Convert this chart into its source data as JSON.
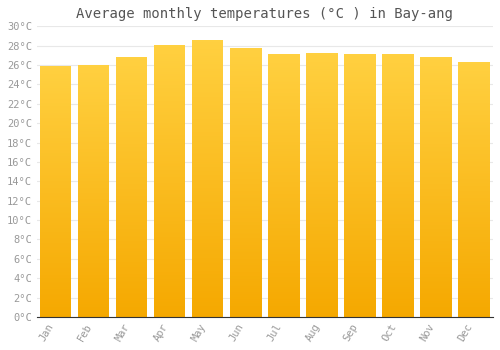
{
  "title": "Average monthly temperatures (°C ) in Bay-ang",
  "months": [
    "Jan",
    "Feb",
    "Mar",
    "Apr",
    "May",
    "Jun",
    "Jul",
    "Aug",
    "Sep",
    "Oct",
    "Nov",
    "Dec"
  ],
  "values": [
    25.9,
    26.0,
    26.8,
    28.1,
    28.6,
    27.8,
    27.1,
    27.2,
    27.1,
    27.1,
    26.8,
    26.3
  ],
  "bar_color_top": "#FFD040",
  "bar_color_bottom": "#F5A800",
  "ylim": [
    0,
    30
  ],
  "ytick_step": 2,
  "background_color": "#ffffff",
  "plot_bg_color": "#ffffff",
  "grid_color": "#e8e8e8",
  "title_fontsize": 10,
  "tick_fontsize": 7.5,
  "tick_color": "#999999",
  "title_color": "#555555",
  "font_family": "monospace",
  "bar_width": 0.82,
  "figsize": [
    5.0,
    3.5
  ],
  "dpi": 100
}
